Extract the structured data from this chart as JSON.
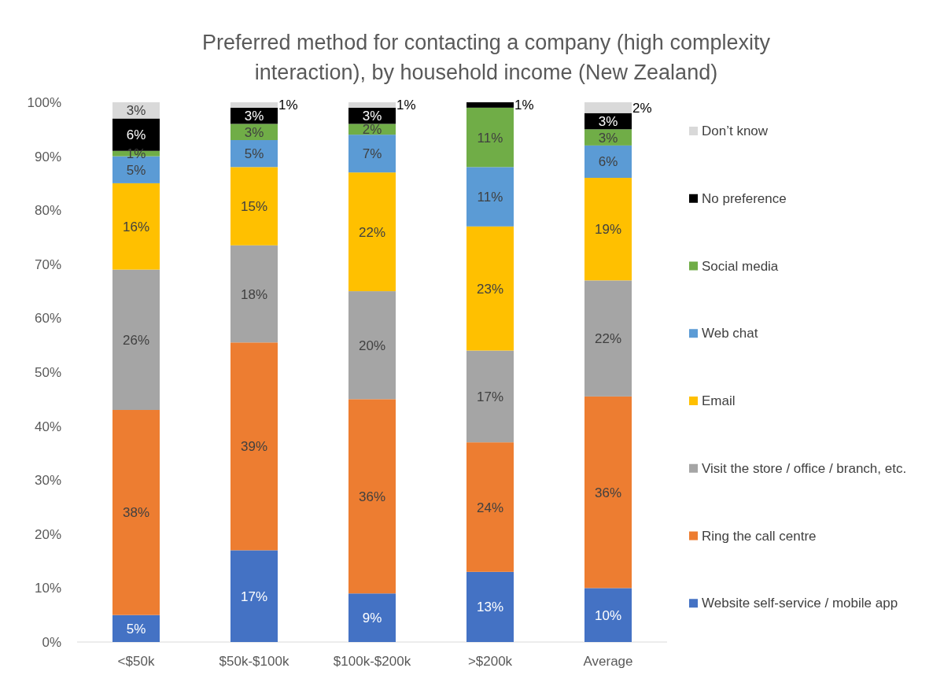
{
  "chart_data": {
    "type": "bar",
    "stacked": true,
    "title": "Preferred method for contacting a company (high complexity interaction), by household income (New Zealand)",
    "categories": [
      "<$50k",
      "$50k-$100k",
      "$100k-$200k",
      ">$200k",
      "Average"
    ],
    "series": [
      {
        "name": "Website self-service / mobile app",
        "color": "#4472c4",
        "values": [
          5,
          17,
          9,
          13,
          10
        ],
        "value_labels": [
          "5%",
          "17%",
          "9%",
          "13%",
          "10%"
        ]
      },
      {
        "name": "Ring the call centre",
        "color": "#ed7d31",
        "values": [
          38,
          38.5,
          36,
          24,
          35.5
        ],
        "value_labels": [
          "38%",
          "39%",
          "36%",
          "24%",
          "36%"
        ]
      },
      {
        "name": "Visit the store / office / branch, etc.",
        "color": "#a5a5a5",
        "values": [
          26,
          18,
          20,
          17,
          21.5
        ],
        "value_labels": [
          "26%",
          "18%",
          "20%",
          "17%",
          "22%"
        ]
      },
      {
        "name": "Email",
        "color": "#ffc000",
        "values": [
          16,
          14.5,
          22,
          23,
          19
        ],
        "value_labels": [
          "16%",
          "15%",
          "22%",
          "23%",
          "19%"
        ]
      },
      {
        "name": "Web chat",
        "color": "#5b9bd5",
        "values": [
          5,
          5,
          7,
          11,
          6
        ],
        "value_labels": [
          "5%",
          "5%",
          "7%",
          "11%",
          "6%"
        ]
      },
      {
        "name": "Social media",
        "color": "#70ad47",
        "values": [
          1,
          3,
          2,
          11,
          3
        ],
        "value_labels": [
          "1%",
          "3%",
          "2%",
          "11%",
          "3%"
        ]
      },
      {
        "name": "No preference",
        "color": "#000000",
        "values": [
          6,
          3,
          3,
          1,
          3
        ],
        "value_labels": [
          "6%",
          "3%",
          "3%",
          "1%",
          "3%"
        ]
      },
      {
        "name": "Don’t know",
        "color": "#d9d9d9",
        "values": [
          3,
          1,
          1,
          null,
          2
        ],
        "value_labels": [
          "3%",
          "1%",
          "1%",
          null,
          "2%"
        ]
      }
    ],
    "ylim": [
      0,
      100
    ],
    "yticks": [
      {
        "value": 0,
        "label": "0%"
      },
      {
        "value": 10,
        "label": "10%"
      },
      {
        "value": 20,
        "label": "20%"
      },
      {
        "value": 30,
        "label": "30%"
      },
      {
        "value": 40,
        "label": "40%"
      },
      {
        "value": 50,
        "label": "50%"
      },
      {
        "value": 60,
        "label": "60%"
      },
      {
        "value": 70,
        "label": "70%"
      },
      {
        "value": 80,
        "label": "80%"
      },
      {
        "value": 90,
        "label": "90%"
      },
      {
        "value": 100,
        "label": "100%"
      }
    ],
    "legend": "right"
  }
}
